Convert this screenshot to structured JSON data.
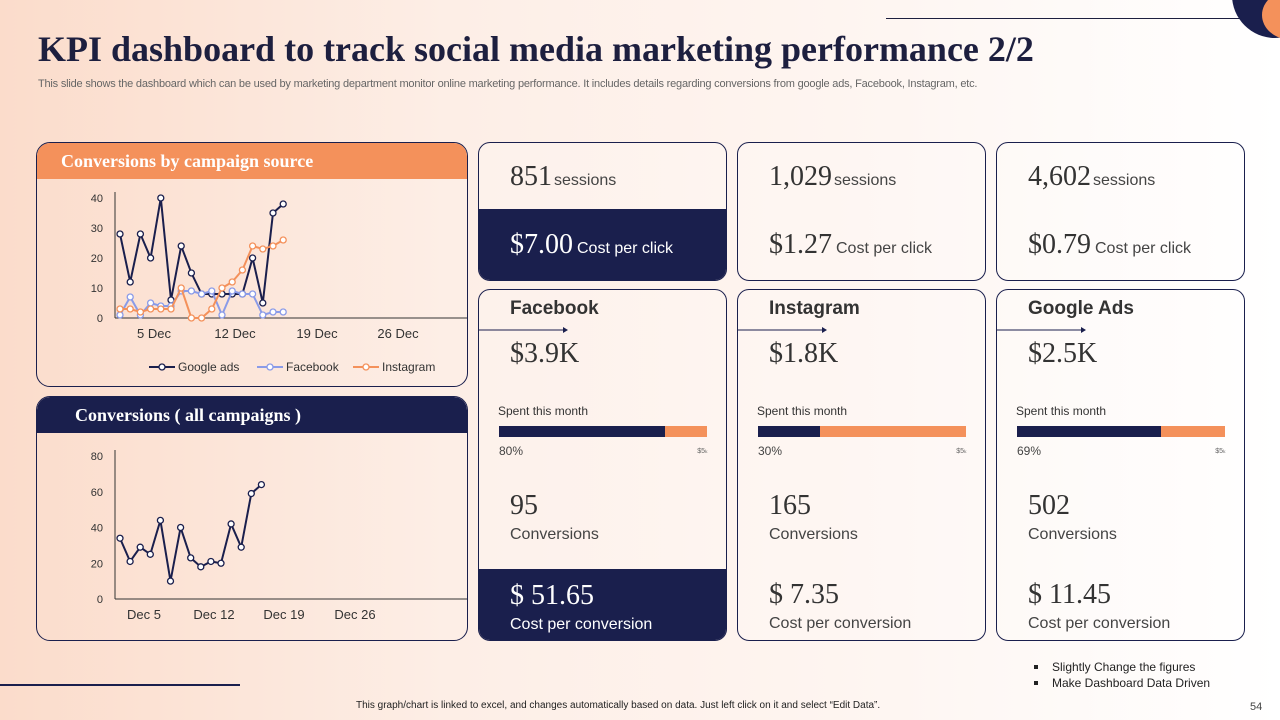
{
  "slide": {
    "title": "KPI dashboard to track social media marketing performance 2/2",
    "subtitle": "This slide shows the dashboard which can be used by marketing department monitor online marketing performance. It includes details regarding conversions from google ads, Facebook, Instagram, etc.",
    "footer": "This graph/chart is linked to excel, and changes automatically based on data. Just left click on it and select “Edit Data”.",
    "page_number": "54",
    "notes": [
      "Slightly Change the figures",
      "Make Dashboard  Data Driven"
    ],
    "colors": {
      "navy": "#1a1f4d",
      "orange": "#f4915b",
      "blue": "#8a9be8"
    }
  },
  "campaign_panel": {
    "title": "Conversions by campaign source"
  },
  "all_panel": {
    "title": "Conversions ( all campaigns )"
  },
  "chart_data": [
    {
      "type": "line",
      "title": "Conversions by campaign source",
      "y_ticks": [
        "40",
        "30",
        "20",
        "10",
        "0"
      ],
      "x_ticks": [
        "5 Dec",
        "12 Dec",
        "19 Dec",
        "26 Dec"
      ],
      "ylim": [
        0,
        40
      ],
      "legend_placement": "bottom",
      "series": [
        {
          "name": "Google ads",
          "color": "#1a1f4d",
          "values": [
            28,
            12,
            28,
            20,
            40,
            6,
            24,
            15,
            8,
            8,
            8,
            8,
            8,
            20,
            5,
            35,
            38
          ]
        },
        {
          "name": "Facebook",
          "color": "#8a9be8",
          "values": [
            1,
            7,
            1,
            5,
            4,
            4,
            9,
            9,
            8,
            9,
            1,
            9,
            8,
            8,
            1,
            2,
            2
          ]
        },
        {
          "name": "Instagram",
          "color": "#f4915b",
          "values": [
            3,
            3,
            2,
            3,
            3,
            3,
            10,
            0,
            0,
            3,
            10,
            12,
            16,
            24,
            23,
            24,
            26
          ]
        }
      ]
    },
    {
      "type": "line",
      "title": "Conversions ( all campaigns )",
      "y_ticks": [
        "80",
        "60",
        "40",
        "20",
        "0"
      ],
      "x_ticks": [
        "Dec 5",
        "Dec 12",
        "Dec 19",
        "Dec 26"
      ],
      "ylim": [
        0,
        80
      ],
      "series": [
        {
          "name": "",
          "color": "#1a1f4d",
          "values": [
            34,
            21,
            29,
            25,
            44,
            10,
            40,
            23,
            18,
            21,
            20,
            42,
            29,
            59,
            64
          ]
        }
      ]
    }
  ],
  "kpis": [
    {
      "sessions": "851",
      "sessions_unit": "sessions",
      "cpc": "$7.00",
      "cpc_label": "Cost per click",
      "highlight": true
    },
    {
      "sessions": "1,029",
      "sessions_unit": "sessions",
      "cpc": "$1.27",
      "cpc_label": "Cost per click",
      "highlight": false
    },
    {
      "sessions": "4,602",
      "sessions_unit": "sessions",
      "cpc": "$0.79",
      "cpc_label": "Cost per click",
      "highlight": false
    }
  ],
  "channels": [
    {
      "name": "Facebook",
      "spent": "$3.9K",
      "spent_label": "Spent this month",
      "percent_text": "80%",
      "percent": 80,
      "marker": "$5ₖ",
      "conversions": "95",
      "conversions_label": "Conversions",
      "cpconv": "$ 51.65",
      "cpconv_label": "Cost per conversion",
      "highlight": true
    },
    {
      "name": "Instagram",
      "spent": "$1.8K",
      "spent_label": "Spent this month",
      "percent_text": "30%",
      "percent": 30,
      "marker": "$5ₖ",
      "conversions": "165",
      "conversions_label": "Conversions",
      "cpconv": "$ 7.35",
      "cpconv_label": "Cost per conversion",
      "highlight": false
    },
    {
      "name": "Google Ads",
      "spent": "$2.5K",
      "spent_label": "Spent this month",
      "percent_text": "69%",
      "percent": 69,
      "marker": "$5ₖ",
      "conversions": "502",
      "conversions_label": "Conversions",
      "cpconv": "$ 11.45",
      "cpconv_label": "Cost per conversion",
      "highlight": false
    }
  ]
}
